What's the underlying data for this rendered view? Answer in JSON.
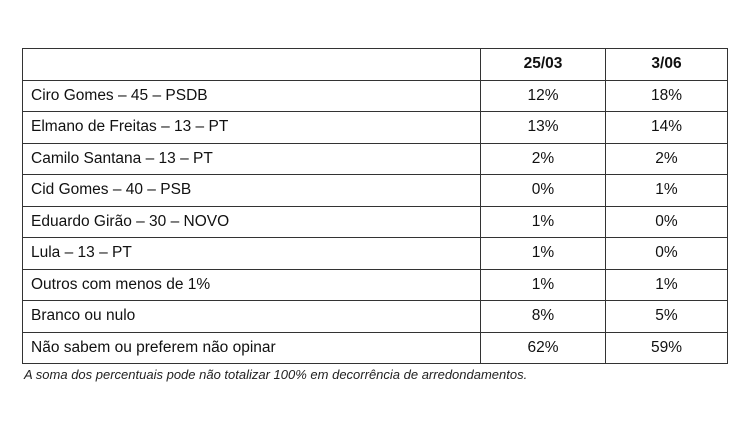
{
  "table": {
    "columns": [
      "25/03",
      "3/06"
    ],
    "rows": [
      [
        "Ciro Gomes – 45 – PSDB",
        "12%",
        "18%"
      ],
      [
        "Elmano de Freitas – 13 – PT",
        "13%",
        "14%"
      ],
      [
        "Camilo Santana – 13 – PT",
        "2%",
        "2%"
      ],
      [
        "Cid Gomes – 40 – PSB",
        "0%",
        "1%"
      ],
      [
        "Eduardo Girão – 30 – NOVO",
        "1%",
        "0%"
      ],
      [
        "Lula – 13 – PT",
        "1%",
        "0%"
      ],
      [
        "Outros com menos de 1%",
        "1%",
        "1%"
      ],
      [
        "Branco ou nulo",
        "8%",
        "5%"
      ],
      [
        "Não sabem ou preferem não opinar",
        "62%",
        "59%"
      ]
    ]
  },
  "footnote": "A soma dos percentuais pode não totalizar 100% em decorrência de arredondamentos."
}
